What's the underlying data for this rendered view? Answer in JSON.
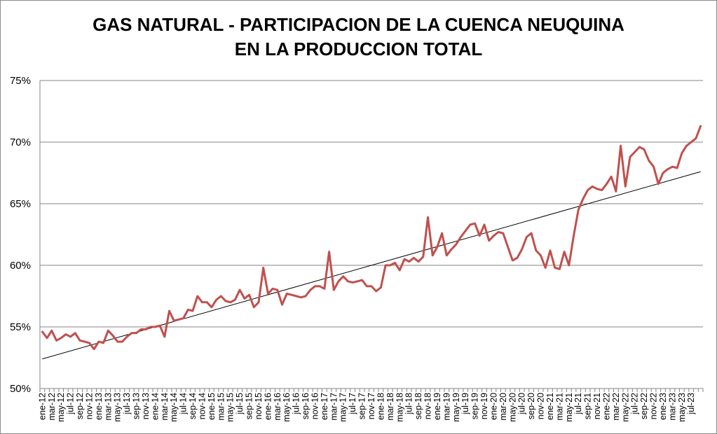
{
  "chart_data": {
    "type": "line",
    "title": "GAS NATURAL - PARTICIPACION DE LA CUENCA NEUQUINA",
    "subtitle": "EN LA PRODUCCION TOTAL",
    "xlabel": "",
    "ylabel": "",
    "ylim": [
      0.5,
      0.75
    ],
    "y_ticks": [
      "50%",
      "55%",
      "60%",
      "65%",
      "70%",
      "75%"
    ],
    "y_tick_values": [
      0.5,
      0.55,
      0.6,
      0.65,
      0.7,
      0.75
    ],
    "grid": true,
    "legend": "none",
    "x_tick_labels": [
      "ene-12",
      "mar-12",
      "may-12",
      "jul-12",
      "sep-12",
      "nov-12",
      "ene-13",
      "mar-13",
      "may-13",
      "jul-13",
      "sep-13",
      "nov-13",
      "ene-14",
      "mar-14",
      "may-14",
      "jul-14",
      "sep-14",
      "nov-14",
      "ene-15",
      "mar-15",
      "may-15",
      "jul-15",
      "sep-15",
      "nov-15",
      "ene-16",
      "mar-16",
      "may-16",
      "jul-16",
      "sep-16",
      "nov-16",
      "ene-17",
      "mar-17",
      "may-17",
      "jul-17",
      "sep-17",
      "nov-17",
      "ene-18",
      "mar-18",
      "may-18",
      "jul-18",
      "sep-18",
      "nov-18",
      "ene-19",
      "mar-19",
      "may-19",
      "jul-19",
      "sep-19",
      "nov-19",
      "ene-20",
      "mar-20",
      "may-20",
      "jul-20",
      "sep-20",
      "nov-20",
      "ene-21",
      "mar-21",
      "may-21",
      "jul-21",
      "sep-21",
      "nov-21",
      "ene-22",
      "mar-22",
      "may-22",
      "jul-22",
      "sep-22",
      "nov-22",
      "ene-23",
      "mar-23",
      "may-23",
      "jul-23"
    ],
    "series": [
      {
        "color": "#c0504d",
        "start": "ene-12",
        "frequency": "monthly",
        "values": [
          0.546,
          0.541,
          0.547,
          0.539,
          0.541,
          0.544,
          0.542,
          0.545,
          0.539,
          0.538,
          0.537,
          0.532,
          0.538,
          0.537,
          0.547,
          0.543,
          0.538,
          0.538,
          0.542,
          0.545,
          0.545,
          0.548,
          0.548,
          0.55,
          0.55,
          0.551,
          0.542,
          0.563,
          0.555,
          0.556,
          0.557,
          0.564,
          0.563,
          0.575,
          0.57,
          0.57,
          0.566,
          0.572,
          0.575,
          0.571,
          0.57,
          0.572,
          0.58,
          0.573,
          0.576,
          0.566,
          0.57,
          0.598,
          0.577,
          0.581,
          0.58,
          0.568,
          0.577,
          0.576,
          0.575,
          0.574,
          0.575,
          0.58,
          0.583,
          0.583,
          0.581,
          0.611,
          0.58,
          0.587,
          0.591,
          0.587,
          0.586,
          0.587,
          0.588,
          0.583,
          0.583,
          0.579,
          0.582,
          0.6,
          0.6,
          0.602,
          0.596,
          0.605,
          0.603,
          0.606,
          0.603,
          0.607,
          0.639,
          0.608,
          0.615,
          0.626,
          0.608,
          0.613,
          0.617,
          0.623,
          0.628,
          0.633,
          0.634,
          0.624,
          0.633,
          0.62,
          0.624,
          0.627,
          0.626,
          0.615,
          0.604,
          0.606,
          0.613,
          0.623,
          0.626,
          0.612,
          0.608,
          0.598,
          0.612,
          0.598,
          0.597,
          0.611,
          0.6,
          0.624,
          0.645,
          0.654,
          0.661,
          0.664,
          0.662,
          0.661,
          0.666,
          0.672,
          0.66,
          0.697,
          0.664,
          0.688,
          0.692,
          0.696,
          0.694,
          0.685,
          0.68,
          0.666,
          0.675,
          0.678,
          0.68,
          0.679,
          0.691,
          0.697,
          0.7,
          0.703,
          0.713
        ]
      },
      {
        "name": "",
        "type": "linear-trend",
        "color": "#000000",
        "values": [
          0.524,
          0.676
        ]
      }
    ]
  }
}
